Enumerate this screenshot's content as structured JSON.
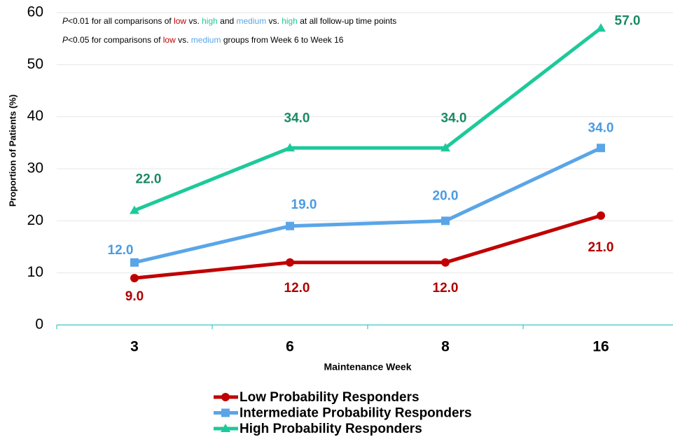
{
  "chart_data": {
    "type": "line",
    "x_label": "Maintenance Week",
    "y_label": "Proportion of Patients (%)",
    "categories": [
      "3",
      "6",
      "8",
      "16"
    ],
    "ylim": [
      0,
      60
    ],
    "yticks": [
      0,
      10,
      20,
      30,
      40,
      50,
      60
    ],
    "grid": true,
    "legend": "bottom",
    "annotations": [
      [
        {
          "text": "P",
          "italic": true
        },
        {
          "text": "<0.01 for all comparisons of "
        },
        {
          "text": "low",
          "color": "#c00000"
        },
        {
          "text": " vs. "
        },
        {
          "text": "high",
          "color": "#1dc99a"
        },
        {
          "text": " and "
        },
        {
          "text": "medium",
          "color": "#5aa5e8"
        },
        {
          "text": " vs. "
        },
        {
          "text": "high",
          "color": "#1dc99a"
        },
        {
          "text": " at all follow-up time points"
        }
      ],
      [
        {
          "text": "P",
          "italic": true
        },
        {
          "text": "<0.05 for comparisons of "
        },
        {
          "text": "low",
          "color": "#c00000"
        },
        {
          "text": " vs. "
        },
        {
          "text": "medium",
          "color": "#5aa5e8"
        },
        {
          "text": " groups from Week 6 to Week 16"
        }
      ]
    ],
    "series": [
      {
        "name": "Low Probability Responders",
        "color": "#c00000",
        "label_color": "#b00000",
        "marker": "circle",
        "values": [
          9,
          12,
          12,
          21
        ],
        "value_labels": [
          "9.0",
          "12.0",
          "12.0",
          "21.0"
        ]
      },
      {
        "name": "Intermediate Probability Responders",
        "color": "#5aa5e8",
        "label_color": "#4b9be4",
        "marker": "square",
        "values": [
          12,
          19,
          20,
          34
        ],
        "value_labels": [
          "12.0",
          "19.0",
          "20.0",
          "34.0"
        ]
      },
      {
        "name": "High Probability Responders",
        "color": "#1dc99a",
        "label_color": "#1a8a66",
        "marker": "triangle",
        "values": [
          22,
          34,
          34,
          57
        ],
        "value_labels": [
          "22.0",
          "34.0",
          "34.0",
          "57.0"
        ]
      }
    ]
  }
}
